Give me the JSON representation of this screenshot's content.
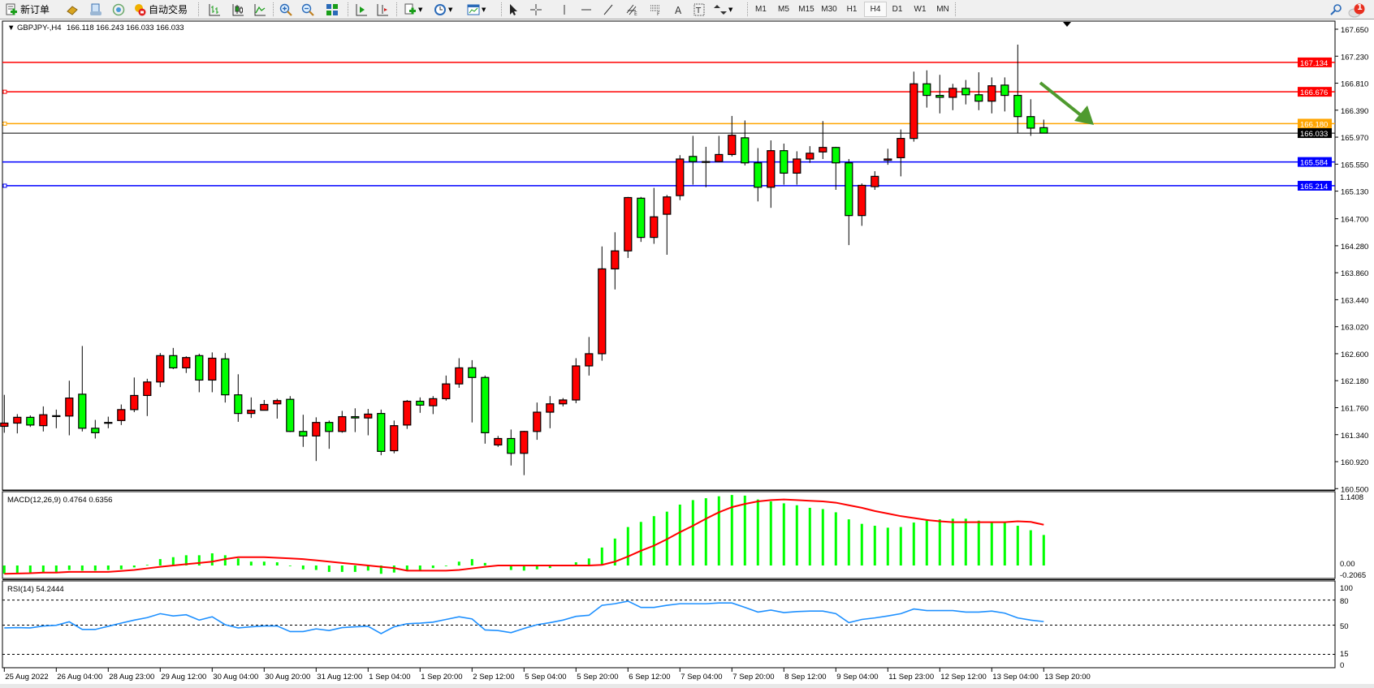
{
  "toolbar": {
    "new_order_label": "新订单",
    "autotrade_label": "自动交易",
    "timeframes": [
      "M1",
      "M5",
      "M15",
      "M30",
      "H1",
      "H4",
      "D1",
      "W1",
      "MN"
    ],
    "active_timeframe": "H4",
    "notification_count": "1"
  },
  "chart": {
    "symbol": "GBPJPY-,H4",
    "ohlc": "166.118 166.243 166.033 166.033",
    "price_ticks": [
      "167.650",
      "167.230",
      "166.810",
      "166.390",
      "165.970",
      "165.550",
      "165.130",
      "164.700",
      "164.280",
      "163.860",
      "163.440",
      "163.020",
      "162.600",
      "162.180",
      "161.760",
      "161.340",
      "160.920",
      "160.500"
    ],
    "levels": [
      {
        "price": "167.134",
        "color": "#ff0000"
      },
      {
        "price": "166.676",
        "color": "#ff0000"
      },
      {
        "price": "166.180",
        "color": "#ffa500"
      },
      {
        "price": "165.584",
        "color": "#0000ff"
      },
      {
        "price": "165.214",
        "color": "#0000ff"
      }
    ],
    "current_price": "166.033",
    "up_color": "#ff0000",
    "down_color": "#00ff00",
    "arrow_color": "#4f9a2f",
    "candles": [
      [
        161.47,
        161.96,
        161.37,
        161.52
      ],
      [
        161.52,
        161.66,
        161.36,
        161.61
      ],
      [
        161.61,
        161.64,
        161.46,
        161.49
      ],
      [
        161.48,
        161.78,
        161.39,
        161.65
      ],
      [
        161.63,
        161.73,
        161.44,
        161.635
      ],
      [
        161.63,
        162.18,
        161.33,
        161.91
      ],
      [
        161.97,
        162.72,
        161.39,
        161.44
      ],
      [
        161.44,
        161.57,
        161.28,
        161.37
      ],
      [
        161.52,
        161.62,
        161.44,
        161.53
      ],
      [
        161.56,
        161.81,
        161.49,
        161.73
      ],
      [
        161.73,
        162.23,
        161.69,
        161.95
      ],
      [
        161.95,
        162.21,
        161.63,
        162.16
      ],
      [
        162.16,
        162.61,
        162.08,
        162.57
      ],
      [
        162.57,
        162.69,
        162.36,
        162.38
      ],
      [
        162.38,
        162.56,
        162.3,
        162.54
      ],
      [
        162.57,
        162.6,
        162.0,
        162.19
      ],
      [
        162.19,
        162.62,
        162.0,
        162.53
      ],
      [
        162.52,
        162.61,
        161.84,
        161.96
      ],
      [
        161.96,
        162.28,
        161.54,
        161.67
      ],
      [
        161.67,
        161.92,
        161.6,
        161.72
      ],
      [
        161.72,
        161.88,
        161.72,
        161.81
      ],
      [
        161.82,
        161.9,
        161.59,
        161.87
      ],
      [
        161.89,
        161.94,
        161.38,
        161.39
      ],
      [
        161.39,
        161.65,
        161.15,
        161.32
      ],
      [
        161.32,
        161.61,
        160.93,
        161.53
      ],
      [
        161.53,
        161.56,
        161.12,
        161.39
      ],
      [
        161.39,
        161.71,
        161.37,
        161.62
      ],
      [
        161.62,
        161.75,
        161.38,
        161.6
      ],
      [
        161.6,
        161.74,
        161.33,
        161.66
      ],
      [
        161.67,
        161.73,
        161.02,
        161.08
      ],
      [
        161.09,
        161.56,
        161.05,
        161.48
      ],
      [
        161.49,
        161.88,
        161.43,
        161.86
      ],
      [
        161.86,
        161.92,
        161.68,
        161.8
      ],
      [
        161.79,
        161.94,
        161.66,
        161.9
      ],
      [
        161.9,
        162.26,
        161.87,
        162.13
      ],
      [
        162.13,
        162.53,
        162.07,
        162.38
      ],
      [
        162.38,
        162.5,
        161.53,
        162.23
      ],
      [
        162.23,
        162.26,
        161.2,
        161.37
      ],
      [
        161.18,
        161.32,
        161.15,
        161.28
      ],
      [
        161.28,
        161.42,
        160.86,
        161.05
      ],
      [
        161.05,
        161.4,
        160.71,
        161.39
      ],
      [
        161.39,
        161.84,
        161.26,
        161.69
      ],
      [
        161.69,
        161.94,
        161.44,
        161.82
      ],
      [
        161.82,
        161.91,
        161.78,
        161.88
      ],
      [
        161.88,
        162.53,
        161.83,
        162.41
      ],
      [
        162.41,
        162.86,
        162.26,
        162.6
      ],
      [
        162.6,
        164.27,
        162.49,
        163.92
      ],
      [
        163.92,
        164.49,
        163.6,
        164.2
      ],
      [
        164.2,
        165.04,
        164.09,
        165.03
      ],
      [
        165.02,
        165.04,
        164.34,
        164.41
      ],
      [
        164.41,
        165.18,
        164.31,
        164.73
      ],
      [
        164.77,
        165.07,
        164.14,
        165.04
      ],
      [
        165.06,
        165.69,
        164.99,
        165.63
      ],
      [
        165.67,
        165.99,
        165.23,
        165.59
      ],
      [
        165.59,
        165.82,
        165.19,
        165.58
      ],
      [
        165.59,
        165.99,
        165.58,
        165.7
      ],
      [
        165.7,
        166.3,
        165.67,
        166.0
      ],
      [
        165.96,
        166.23,
        165.53,
        165.57
      ],
      [
        165.57,
        165.8,
        164.97,
        165.19
      ],
      [
        165.19,
        165.92,
        164.87,
        165.76
      ],
      [
        165.76,
        165.87,
        165.23,
        165.41
      ],
      [
        165.41,
        165.75,
        165.23,
        165.63
      ],
      [
        165.63,
        165.83,
        165.57,
        165.72
      ],
      [
        165.74,
        166.22,
        165.63,
        165.81
      ],
      [
        165.81,
        165.82,
        165.15,
        165.57
      ],
      [
        165.57,
        165.63,
        164.29,
        164.75
      ],
      [
        164.75,
        165.25,
        164.59,
        165.22
      ],
      [
        165.2,
        165.44,
        165.15,
        165.36
      ],
      [
        165.61,
        165.79,
        165.54,
        165.63
      ],
      [
        165.65,
        166.09,
        165.36,
        165.95
      ],
      [
        165.95,
        166.99,
        165.9,
        166.8
      ],
      [
        166.8,
        167.01,
        166.43,
        166.62
      ],
      [
        166.62,
        166.94,
        166.34,
        166.59
      ],
      [
        166.59,
        166.8,
        166.39,
        166.73
      ],
      [
        166.73,
        166.86,
        166.48,
        166.63
      ],
      [
        166.63,
        166.98,
        166.39,
        166.53
      ],
      [
        166.53,
        166.9,
        166.34,
        166.77
      ],
      [
        166.78,
        166.9,
        166.37,
        166.62
      ],
      [
        166.62,
        167.41,
        166.03,
        166.29
      ],
      [
        166.29,
        166.56,
        165.99,
        166.11
      ],
      [
        166.118,
        166.243,
        166.033,
        166.033
      ]
    ]
  },
  "macd": {
    "label": "MACD(12,26,9) 0.4764 0.6356",
    "axis_labels": [
      "1.1408",
      "0.00",
      "-0.2065"
    ],
    "histogram_color": "#00ff00",
    "signal_color": "#ff0000",
    "histogram": [
      -0.13,
      -0.12,
      -0.12,
      -0.12,
      -0.1,
      -0.07,
      -0.08,
      -0.08,
      -0.07,
      -0.06,
      -0.03,
      0.01,
      0.1,
      0.13,
      0.16,
      0.16,
      0.19,
      0.16,
      0.11,
      0.06,
      0.06,
      0.05,
      -0.01,
      -0.06,
      -0.07,
      -0.1,
      -0.1,
      -0.1,
      -0.08,
      -0.13,
      -0.11,
      -0.07,
      -0.07,
      -0.04,
      0.0,
      0.06,
      0.1,
      0.04,
      0.0,
      -0.07,
      -0.08,
      -0.06,
      -0.04,
      0.0,
      0.05,
      0.11,
      0.28,
      0.42,
      0.6,
      0.68,
      0.77,
      0.84,
      0.95,
      1.02,
      1.05,
      1.08,
      1.1,
      1.09,
      1.03,
      1.0,
      0.97,
      0.94,
      0.9,
      0.88,
      0.83,
      0.72,
      0.65,
      0.62,
      0.59,
      0.6,
      0.67,
      0.7,
      0.72,
      0.73,
      0.73,
      0.7,
      0.68,
      0.68,
      0.62,
      0.55,
      0.4764
    ],
    "signal": [
      -0.13,
      -0.125,
      -0.12,
      -0.11,
      -0.11,
      -0.1,
      -0.1,
      -0.1,
      -0.1,
      -0.085,
      -0.07,
      -0.045,
      -0.02,
      0.0,
      0.02,
      0.04,
      0.06,
      0.1,
      0.13,
      0.13,
      0.13,
      0.12,
      0.11,
      0.1,
      0.08,
      0.06,
      0.04,
      0.02,
      0.0,
      -0.02,
      -0.04,
      -0.08,
      -0.08,
      -0.08,
      -0.08,
      -0.07,
      -0.045,
      -0.02,
      0.0,
      0.0,
      0.0,
      0.0,
      0.0,
      0.0,
      0.0,
      0.0,
      0.01,
      0.06,
      0.14,
      0.23,
      0.31,
      0.41,
      0.52,
      0.62,
      0.73,
      0.83,
      0.91,
      0.96,
      1.0,
      1.02,
      1.03,
      1.02,
      1.01,
      1.0,
      0.98,
      0.94,
      0.9,
      0.85,
      0.81,
      0.77,
      0.74,
      0.71,
      0.69,
      0.675,
      0.675,
      0.675,
      0.675,
      0.675,
      0.69,
      0.68,
      0.6356
    ]
  },
  "rsi": {
    "label": "RSI(14) 54.2444",
    "axis_labels": [
      "100",
      "80",
      "50",
      "15",
      "0"
    ],
    "levels": [
      80,
      50,
      15
    ],
    "line_color": "#1e90ff",
    "values": [
      46.7,
      47,
      46.7,
      49,
      49.8,
      54,
      44.8,
      44.8,
      48.6,
      52.4,
      56,
      59,
      63.7,
      61,
      62.4,
      56,
      60,
      50.5,
      46.7,
      48,
      49,
      49,
      42.3,
      42.3,
      45.5,
      43.5,
      47,
      48,
      48.6,
      39.8,
      48,
      51.7,
      52.4,
      53.6,
      56.8,
      60,
      57.4,
      44.2,
      43.5,
      41,
      46,
      50.5,
      53,
      56,
      60.5,
      61.8,
      73.7,
      75.6,
      78.7,
      71.2,
      71.2,
      73.7,
      75.6,
      75.6,
      75.6,
      76.5,
      76.5,
      71.2,
      65.6,
      68,
      65,
      66.2,
      66.8,
      66.8,
      63.7,
      53,
      56.8,
      58.6,
      61,
      63.7,
      69.3,
      67.4,
      67.4,
      67.4,
      65.6,
      65.6,
      66.8,
      64.3,
      58.6,
      56,
      54.2444
    ]
  },
  "time_labels": [
    "25 Aug 2022",
    "26 Aug 04:00",
    "28 Aug 23:00",
    "29 Aug 12:00",
    "30 Aug 04:00",
    "30 Aug 20:00",
    "31 Aug 12:00",
    "1 Sep 04:00",
    "1 Sep 20:00",
    "2 Sep 12:00",
    "5 Sep 04:00",
    "5 Sep 20:00",
    "6 Sep 12:00",
    "7 Sep 04:00",
    "7 Sep 20:00",
    "8 Sep 12:00",
    "9 Sep 04:00",
    "11 Sep 23:00",
    "12 Sep 12:00",
    "13 Sep 04:00",
    "13 Sep 20:00"
  ]
}
